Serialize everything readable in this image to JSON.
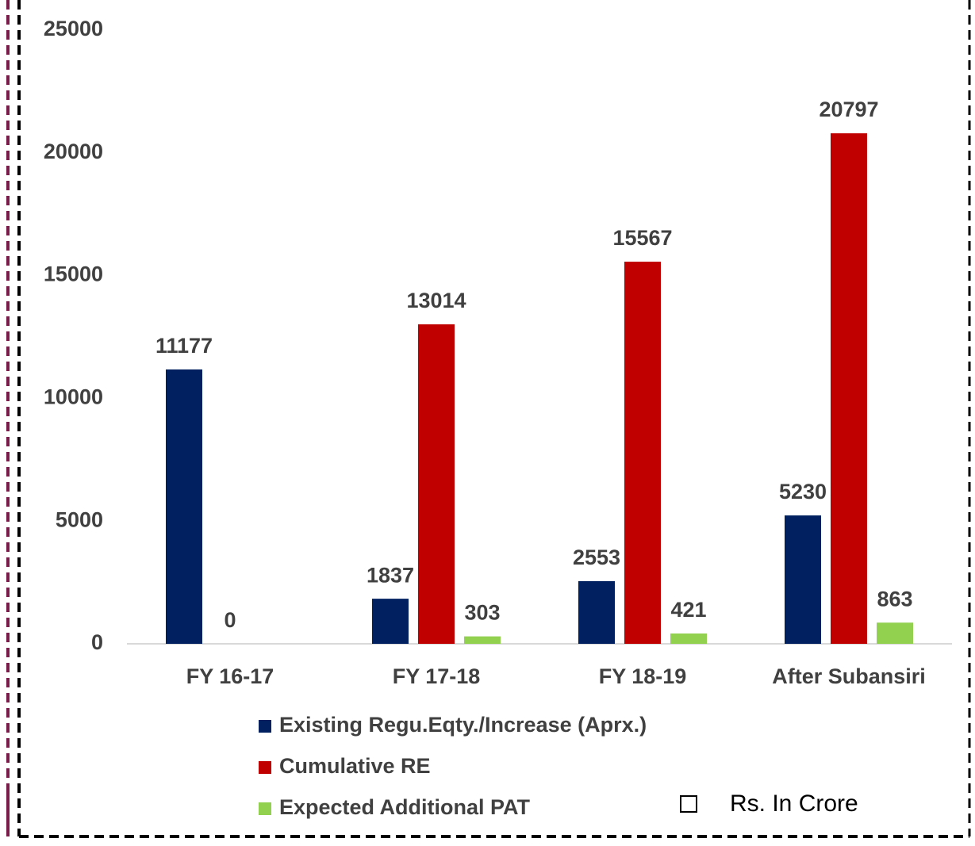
{
  "chart_data": {
    "type": "bar",
    "categories": [
      "FY 16-17",
      "FY 17-18",
      "FY 18-19",
      "After Subansiri"
    ],
    "series": [
      {
        "name": "Existing Regu.Eqty./Increase (Aprx.)",
        "color": "#002060",
        "values": [
          11177,
          1837,
          2553,
          5230
        ]
      },
      {
        "name": "Cumulative RE",
        "color": "#c00000",
        "values": [
          0,
          13014,
          15567,
          20797
        ]
      },
      {
        "name": "Expected Additional PAT",
        "color": "#92d050",
        "values": [
          null,
          303,
          421,
          863
        ]
      }
    ],
    "ylim": [
      0,
      25000
    ],
    "yticks": [
      0,
      5000,
      10000,
      15000,
      20000,
      25000
    ],
    "legend": "bottom",
    "note": "Rs. In Crore"
  }
}
